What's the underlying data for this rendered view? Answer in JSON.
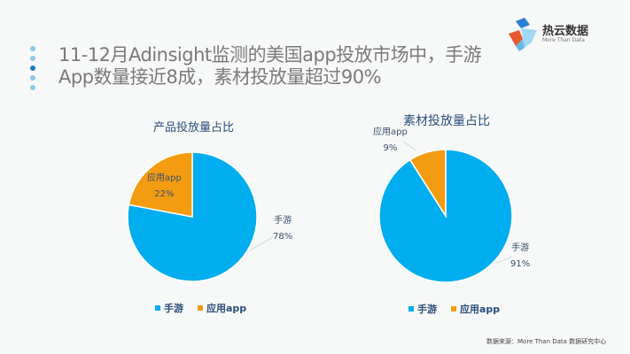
{
  "header": {
    "title_line1": "11-12月Adinsight监测的美国app投放市场中，手游",
    "title_line2": "App数量接近8成，素材投放量超过90%"
  },
  "logo": {
    "name": "热云数据",
    "tagline": "More Than Data"
  },
  "colors": {
    "手游": "#00adef",
    "应用app": "#f39c12"
  },
  "chart_data": [
    {
      "type": "pie",
      "title": "产品投放量占比",
      "categories": [
        "手游",
        "应用app"
      ],
      "values": [
        78,
        22
      ],
      "data_labels": [
        "78%",
        "22%"
      ],
      "legend": "bottom"
    },
    {
      "type": "pie",
      "title": "素材投放量占比",
      "categories": [
        "手游",
        "应用app"
      ],
      "values": [
        91,
        9
      ],
      "data_labels": [
        "91%",
        "9%"
      ],
      "legend": "bottom"
    }
  ],
  "footer": {
    "source": "数据来源：More Than Data 数据研究中心"
  }
}
